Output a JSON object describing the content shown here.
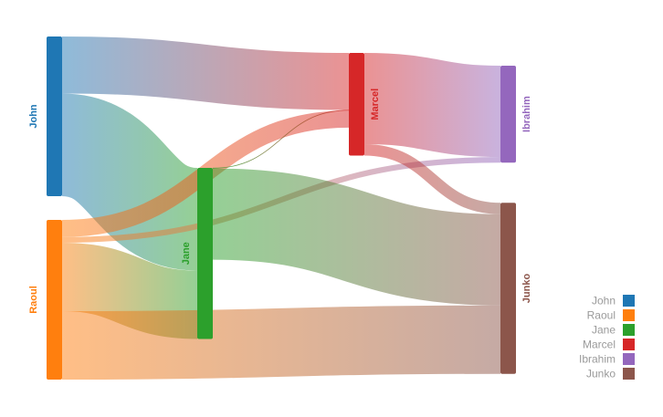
{
  "chart_data": {
    "type": "sankey",
    "nodes": [
      {
        "id": "John",
        "label": "John",
        "color": "#1f77b4",
        "column": 0
      },
      {
        "id": "Raoul",
        "label": "Raoul",
        "color": "#ff7f0e",
        "column": 0
      },
      {
        "id": "Jane",
        "label": "Jane",
        "color": "#2ca02c",
        "column": 1
      },
      {
        "id": "Marcel",
        "label": "Marcel",
        "color": "#d62728",
        "column": 2
      },
      {
        "id": "Ibrahim",
        "label": "Ibrahim",
        "color": "#9467bd",
        "column": 3
      },
      {
        "id": "Junko",
        "label": "Junko",
        "color": "#8c564b",
        "column": 3
      }
    ],
    "links": [
      {
        "source": "John",
        "target": "Marcel",
        "value": 5
      },
      {
        "source": "John",
        "target": "Jane",
        "value": 9
      },
      {
        "source": "Raoul",
        "target": "Marcel",
        "value": 1.5
      },
      {
        "source": "Raoul",
        "target": "Ibrahim",
        "value": 0.5
      },
      {
        "source": "Raoul",
        "target": "Jane",
        "value": 6
      },
      {
        "source": "Raoul",
        "target": "Junko",
        "value": 6
      },
      {
        "source": "Jane",
        "target": "Marcel",
        "value": 0.05
      },
      {
        "source": "Jane",
        "target": "Junko",
        "value": 8
      },
      {
        "source": "Marcel",
        "target": "Ibrahim",
        "value": 8
      },
      {
        "source": "Marcel",
        "target": "Junko",
        "value": 1
      }
    ],
    "legend": {
      "position": "bottom-right",
      "entries": [
        "John",
        "Raoul",
        "Jane",
        "Marcel",
        "Ibrahim",
        "Junko"
      ]
    }
  }
}
